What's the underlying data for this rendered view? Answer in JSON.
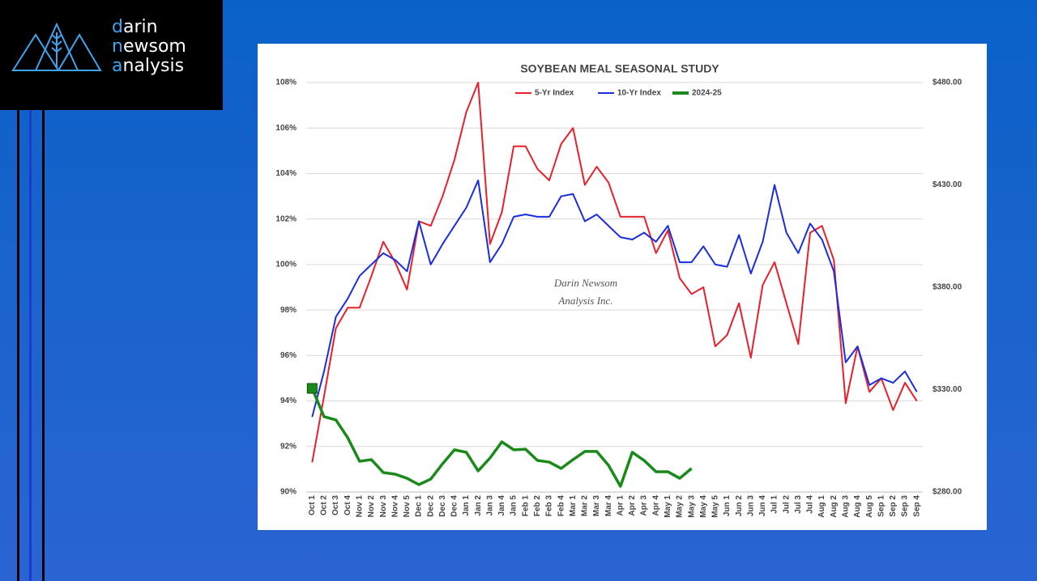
{
  "logo": {
    "lines": [
      "darin",
      "newsom",
      "analysis"
    ]
  },
  "chart_data": {
    "type": "line",
    "title": "SOYBEAN MEAL SEASONAL STUDY",
    "annotation": [
      "Darin Newsom",
      "Analysis Inc."
    ],
    "categories": [
      "Oct 1",
      "Oct 2",
      "Oct 3",
      "Oct 4",
      "Nov 1",
      "Nov 2",
      "Nov 3",
      "Nov 4",
      "Nov 5",
      "Dec 1",
      "Dec 2",
      "Dec 3",
      "Dec 4",
      "Jan 1",
      "Jan 2",
      "Jan 3",
      "Jan 4",
      "Jan 5",
      "Feb 1",
      "Feb 2",
      "Feb 3",
      "Feb 4",
      "Mar 1",
      "Mar 2",
      "Mar 3",
      "Mar 4",
      "Apr 1",
      "Apr 2",
      "Apr 3",
      "Apr 4",
      "May 1",
      "May 2",
      "May 3",
      "May 4",
      "May 5",
      "Jun 1",
      "Jun 2",
      "Jun 3",
      "Jun 4",
      "Jul 1",
      "Jul 2",
      "Jul 3",
      "Jul 4",
      "Aug 1",
      "Aug 2",
      "Aug 3",
      "Aug 4",
      "Aug 5",
      "Sep 1",
      "Sep 2",
      "Sep 3",
      "Sep 4"
    ],
    "series": [
      {
        "name": "5-Yr Index",
        "color": "#e8202a",
        "values": [
          91.3,
          94.2,
          97.2,
          98.1,
          98.1,
          99.5,
          101.0,
          100.1,
          98.9,
          101.9,
          101.7,
          103.0,
          104.6,
          106.7,
          108.0,
          100.9,
          102.3,
          105.2,
          105.2,
          104.2,
          103.7,
          105.3,
          106.0,
          103.5,
          104.3,
          103.6,
          102.1,
          102.1,
          102.1,
          100.5,
          101.5,
          99.4,
          98.7,
          99.0,
          96.4,
          96.9,
          98.3,
          95.9,
          99.1,
          100.1,
          98.3,
          96.5,
          101.4,
          101.7,
          100.2,
          93.9,
          96.4,
          94.4,
          95.0,
          93.6,
          94.8,
          94.0
        ]
      },
      {
        "name": "10-Yr Index",
        "color": "#1a2ee0",
        "values": [
          93.3,
          95.3,
          97.7,
          98.5,
          99.5,
          100.0,
          100.5,
          100.2,
          99.7,
          101.9,
          100.0,
          100.9,
          101.7,
          102.5,
          103.7,
          100.1,
          100.9,
          102.1,
          102.2,
          102.1,
          102.1,
          103.0,
          103.1,
          101.9,
          102.2,
          101.7,
          101.2,
          101.1,
          101.4,
          101.0,
          101.7,
          100.1,
          100.1,
          100.8,
          100.0,
          99.9,
          101.3,
          99.6,
          101.0,
          103.5,
          101.4,
          100.5,
          101.8,
          101.1,
          99.7,
          95.7,
          96.4,
          94.7,
          95.0,
          94.8,
          95.3,
          94.4
        ]
      },
      {
        "name": "2024-25",
        "color": "#1a8a1a",
        "axis": "y2",
        "values": [
          330.6,
          316.8,
          315.2,
          306.5,
          295.0,
          295.8,
          289.5,
          288.7,
          286.7,
          283.6,
          286.3,
          293.8,
          300.6,
          299.4,
          290.3,
          296.6,
          304.5,
          300.6,
          300.9,
          295.4,
          294.6,
          291.5,
          295.8,
          299.8,
          299.8,
          293.0,
          282.8,
          299.4,
          295.4,
          289.9,
          289.9,
          286.7,
          291.5,
          null,
          null,
          null,
          null,
          null,
          null,
          null,
          null,
          null,
          null,
          null,
          null,
          null,
          null,
          null,
          null,
          null,
          null,
          null
        ]
      }
    ],
    "ylim": [
      90,
      108
    ],
    "yticks": [
      {
        "value": 90,
        "label": "90%"
      },
      {
        "value": 92,
        "label": "92%"
      },
      {
        "value": 94,
        "label": "94%"
      },
      {
        "value": 96,
        "label": "96%"
      },
      {
        "value": 98,
        "label": "98%"
      },
      {
        "value": 100,
        "label": "100%"
      },
      {
        "value": 102,
        "label": "102%"
      },
      {
        "value": 104,
        "label": "104%"
      },
      {
        "value": 106,
        "label": "106%"
      },
      {
        "value": 108,
        "label": "108%"
      }
    ],
    "y2lim": [
      280,
      480
    ],
    "y2ticks": [
      {
        "value": 280,
        "label": "$280.00"
      },
      {
        "value": 330,
        "label": "$330.00"
      },
      {
        "value": 380,
        "label": "$380.00"
      },
      {
        "value": 430,
        "label": "$430.00"
      },
      {
        "value": 480,
        "label": "$480.00"
      }
    ],
    "grid": true,
    "legend": "top"
  }
}
